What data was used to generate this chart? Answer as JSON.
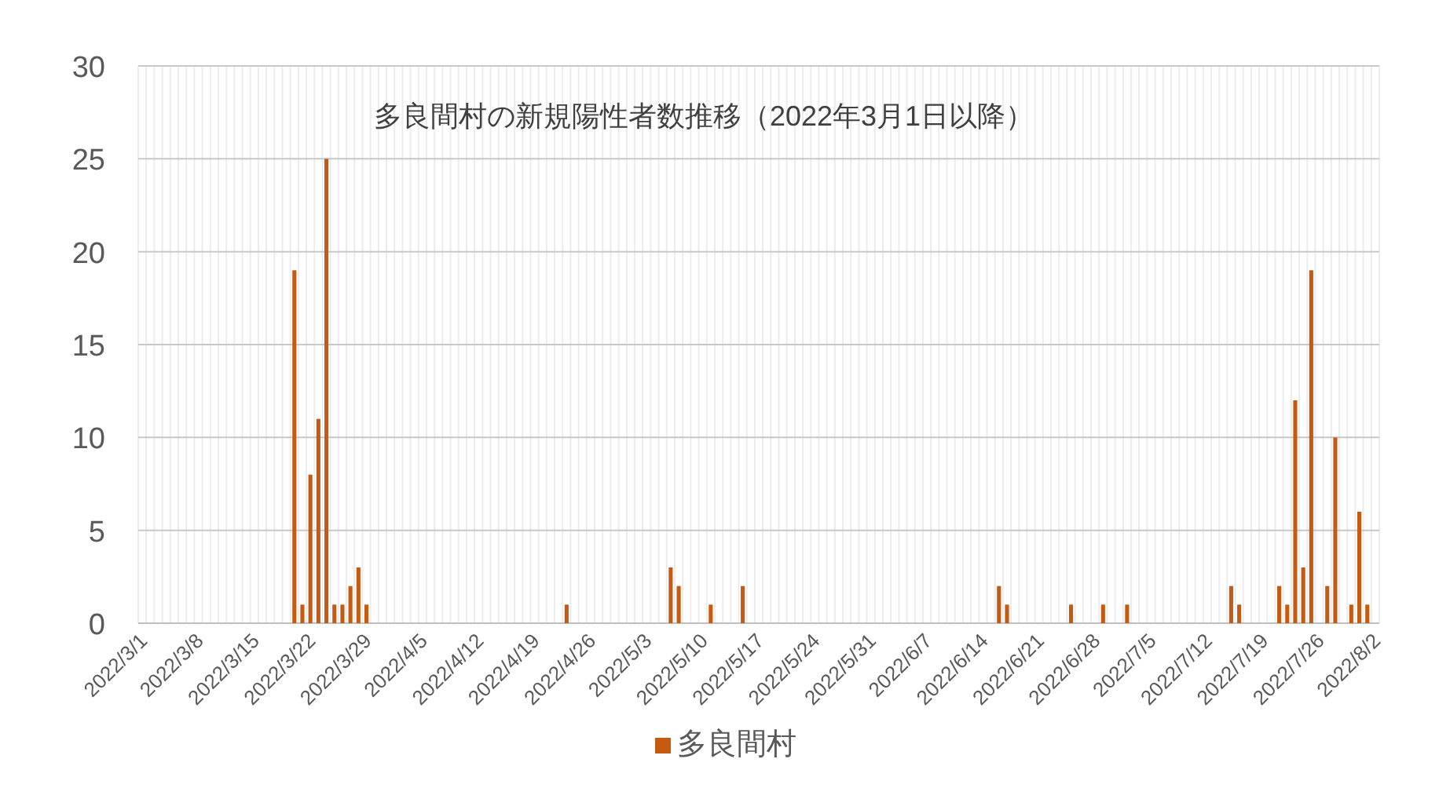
{
  "chart_data": {
    "type": "bar",
    "title": "多良間村の新規陽性者数推移（2022年3月1日以降）",
    "categories": [
      "2022/3/1",
      null,
      null,
      null,
      null,
      null,
      null,
      "2022/3/8",
      null,
      null,
      null,
      null,
      null,
      null,
      "2022/3/15",
      null,
      null,
      null,
      null,
      null,
      null,
      "2022/3/22",
      null,
      null,
      null,
      null,
      null,
      null,
      "2022/3/29",
      null,
      null,
      null,
      null,
      null,
      null,
      "2022/4/5",
      null,
      null,
      null,
      null,
      null,
      null,
      "2022/4/12",
      null,
      null,
      null,
      null,
      null,
      null,
      "2022/4/19",
      null,
      null,
      null,
      null,
      null,
      null,
      "2022/4/26",
      null,
      null,
      null,
      null,
      null,
      null,
      "2022/5/3",
      null,
      null,
      null,
      null,
      null,
      null,
      "2022/5/10",
      null,
      null,
      null,
      null,
      null,
      null,
      "2022/5/17",
      null,
      null,
      null,
      null,
      null,
      null,
      "2022/5/24",
      null,
      null,
      null,
      null,
      null,
      null,
      "2022/5/31",
      null,
      null,
      null,
      null,
      null,
      null,
      "2022/6/7",
      null,
      null,
      null,
      null,
      null,
      null,
      "2022/6/14",
      null,
      null,
      null,
      null,
      null,
      null,
      "2022/6/21",
      null,
      null,
      null,
      null,
      null,
      null,
      "2022/6/28",
      null,
      null,
      null,
      null,
      null,
      null,
      "2022/7/5",
      null,
      null,
      null,
      null,
      null,
      null,
      "2022/7/12",
      null,
      null,
      null,
      null,
      null,
      null,
      "2022/7/19",
      null,
      null,
      null,
      null,
      null,
      null,
      "2022/7/26",
      null,
      null,
      null,
      null,
      null,
      null,
      "2022/8/2"
    ],
    "series": [
      {
        "name": "多良間村",
        "color": "#c55a11",
        "values": [
          0,
          0,
          0,
          0,
          0,
          0,
          0,
          0,
          0,
          0,
          0,
          0,
          0,
          0,
          0,
          0,
          0,
          0,
          0,
          19,
          1,
          8,
          11,
          25,
          1,
          1,
          2,
          3,
          1,
          0,
          0,
          0,
          0,
          0,
          0,
          0,
          0,
          0,
          0,
          0,
          0,
          0,
          0,
          0,
          0,
          0,
          0,
          0,
          0,
          0,
          0,
          0,
          0,
          1,
          0,
          0,
          0,
          0,
          0,
          0,
          0,
          0,
          0,
          0,
          0,
          0,
          3,
          2,
          0,
          0,
          0,
          1,
          0,
          0,
          0,
          2,
          0,
          0,
          0,
          0,
          0,
          0,
          0,
          0,
          0,
          0,
          0,
          0,
          0,
          0,
          0,
          0,
          0,
          0,
          0,
          0,
          0,
          0,
          0,
          0,
          0,
          0,
          0,
          0,
          0,
          0,
          0,
          2,
          1,
          0,
          0,
          0,
          0,
          0,
          0,
          0,
          1,
          0,
          0,
          0,
          1,
          0,
          0,
          1,
          0,
          0,
          0,
          0,
          0,
          0,
          0,
          0,
          0,
          0,
          0,
          0,
          2,
          1,
          0,
          0,
          0,
          0,
          2,
          1,
          12,
          3,
          19,
          0,
          2,
          10,
          0,
          1,
          6,
          1,
          0
        ]
      }
    ],
    "ylim": [
      0,
      30
    ],
    "yticks": [
      0,
      5,
      10,
      15,
      20,
      25,
      30
    ],
    "grid": true,
    "legend": "bottom"
  }
}
